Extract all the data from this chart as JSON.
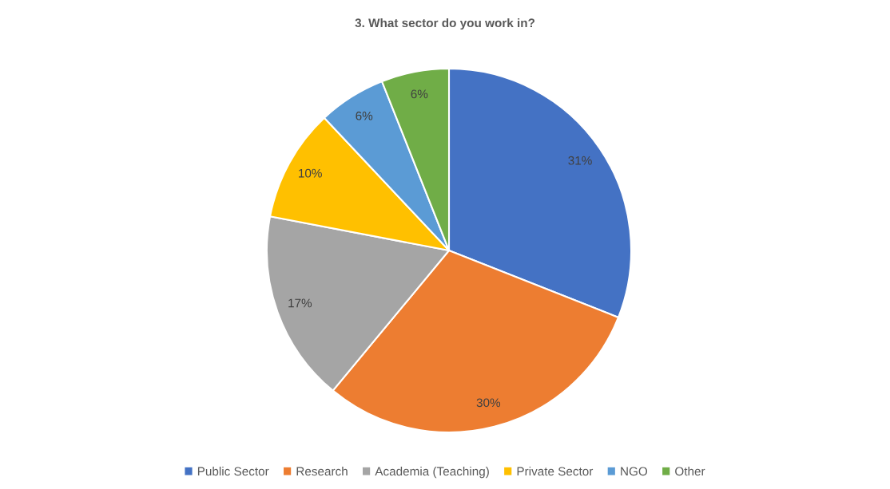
{
  "chart_data": {
    "type": "pie",
    "title": "3. What sector do you work in?",
    "categories": [
      "Public Sector",
      "Research",
      "Academia (Teaching)",
      "Private Sector",
      "NGO",
      "Other"
    ],
    "values": [
      31,
      30,
      17,
      10,
      6,
      6
    ],
    "value_labels": [
      "31%",
      "30%",
      "17%",
      "10%",
      "6%",
      "6%"
    ],
    "colors": [
      "#4472c4",
      "#ed7d31",
      "#a5a5a5",
      "#ffc000",
      "#5b9bd5",
      "#70ad47"
    ],
    "legend": "bottom"
  }
}
